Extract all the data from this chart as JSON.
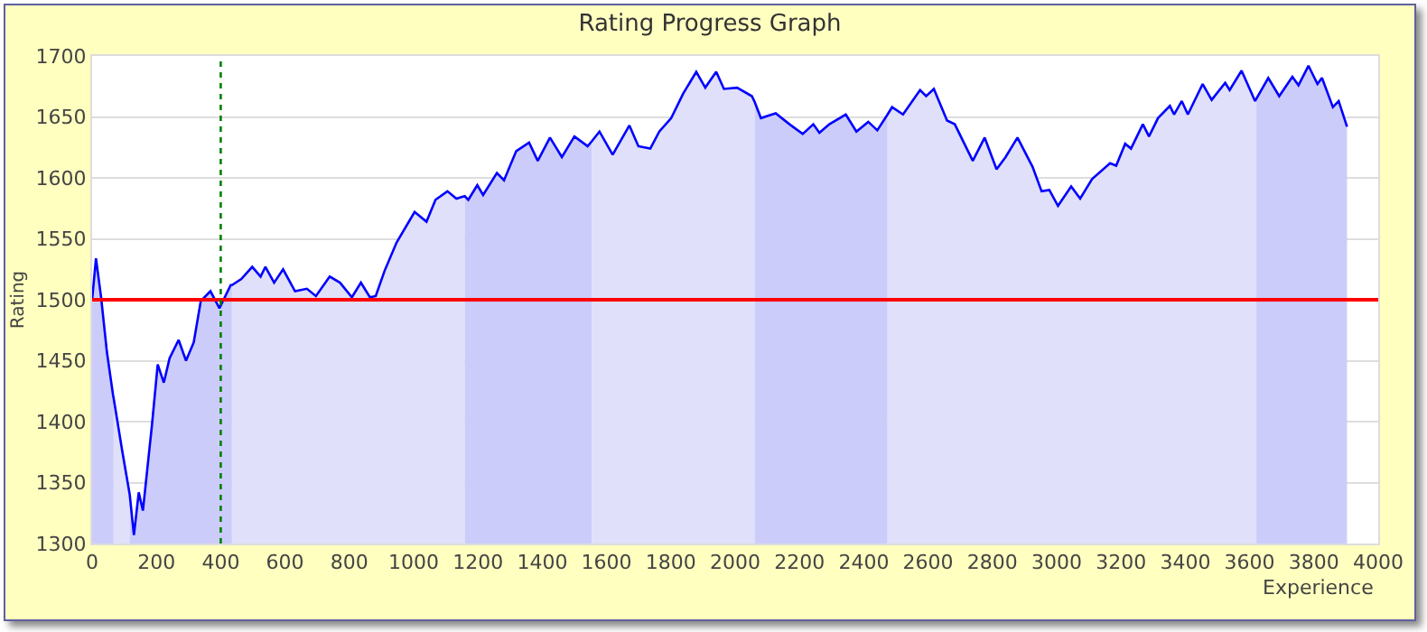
{
  "chart_data": {
    "type": "line",
    "title": "Rating Progress Graph",
    "xlabel": "Experience",
    "ylabel": "Rating",
    "xlim": [
      0,
      4000
    ],
    "xticks": [
      0,
      200,
      400,
      600,
      800,
      1000,
      1200,
      1400,
      1600,
      1800,
      2000,
      2200,
      2400,
      2600,
      2800,
      3000,
      3200,
      3400,
      3600,
      3800,
      4000
    ],
    "ylim": [
      1300,
      1700
    ],
    "yticks": [
      1300,
      1350,
      1400,
      1450,
      1500,
      1550,
      1600,
      1650,
      1700
    ],
    "grid": "y",
    "marker": "none",
    "line_style": "solid",
    "ref_lines": [
      {
        "axis": "y",
        "value": 1500,
        "color": "#ff0000",
        "line_style": "solid"
      },
      {
        "axis": "x",
        "value": 400,
        "color": "#008000",
        "line_style": "dotted"
      }
    ],
    "series": [
      {
        "type": "area",
        "color": "#ccccfa",
        "x": [
          0,
          12,
          28,
          46,
          65,
          67
        ],
        "values": [
          1500,
          1534,
          1502,
          1457,
          1422,
          1419
        ]
      },
      {
        "type": "area",
        "color": "#e0e0fa",
        "x": [
          67,
          93,
          117
        ],
        "values": [
          1419,
          1377,
          1340
        ]
      },
      {
        "type": "area",
        "color": "#ccccfa",
        "x": [
          117,
          130,
          145,
          158,
          186,
          204,
          223,
          241,
          269,
          292,
          316,
          338,
          368,
          396,
          431,
          435
        ],
        "values": [
          1340,
          1307,
          1342,
          1327,
          1397,
          1447,
          1432,
          1452,
          1467,
          1450,
          1465,
          1499,
          1507,
          1493,
          1512,
          1512
        ]
      },
      {
        "type": "area",
        "color": "#e0e0fa",
        "x": [
          435,
          464,
          498,
          524,
          539,
          566,
          594,
          631,
          668,
          696,
          739,
          771,
          808,
          836,
          864,
          882,
          910,
          947,
          1003,
          1040,
          1068,
          1105,
          1133,
          1159
        ],
        "values": [
          1512,
          1517,
          1527,
          1519,
          1527,
          1514,
          1525,
          1507,
          1509,
          1503,
          1519,
          1514,
          1502,
          1514,
          1502,
          1503,
          1524,
          1547,
          1572,
          1564,
          1582,
          1589,
          1583,
          1585
        ]
      },
      {
        "type": "area",
        "color": "#ccccfa",
        "x": [
          1159,
          1170,
          1198,
          1216,
          1259,
          1281,
          1319,
          1359,
          1386,
          1424,
          1461,
          1500,
          1541,
          1554
        ],
        "values": [
          1585,
          1582,
          1594,
          1586,
          1604,
          1598,
          1622,
          1629,
          1614,
          1633,
          1617,
          1634,
          1626,
          1630
        ]
      },
      {
        "type": "area",
        "color": "#e0e0fa",
        "x": [
          1554,
          1578,
          1619,
          1671,
          1699,
          1736,
          1764,
          1801,
          1838,
          1879,
          1907,
          1941,
          1965,
          2006,
          2052,
          2061
        ],
        "values": [
          1630,
          1638,
          1619,
          1643,
          1626,
          1624,
          1638,
          1649,
          1669,
          1687,
          1674,
          1687,
          1673,
          1674,
          1667,
          1662
        ]
      },
      {
        "type": "area",
        "color": "#ccccfa",
        "x": [
          2061,
          2080,
          2126,
          2169,
          2210,
          2243,
          2262,
          2293,
          2344,
          2377,
          2414,
          2442,
          2474
        ],
        "values": [
          1662,
          1649,
          1653,
          1644,
          1636,
          1644,
          1637,
          1644,
          1652,
          1638,
          1646,
          1639,
          1652
        ]
      },
      {
        "type": "area",
        "color": "#e0e0fa",
        "x": [
          2474,
          2488,
          2522,
          2575,
          2594,
          2618,
          2659,
          2683,
          2739,
          2776,
          2813,
          2841,
          2878,
          2925,
          2953,
          2977,
          3004,
          3045,
          3073,
          3110,
          3166,
          3185,
          3213,
          3231,
          3268,
          3287,
          3315,
          3352,
          3365,
          3389,
          3408,
          3454,
          3482,
          3524,
          3538,
          3575,
          3617,
          3621
        ],
        "values": [
          1652,
          1658,
          1652,
          1672,
          1667,
          1673,
          1647,
          1644,
          1614,
          1633,
          1607,
          1617,
          1633,
          1609,
          1589,
          1590,
          1577,
          1593,
          1583,
          1599,
          1612,
          1610,
          1628,
          1624,
          1644,
          1634,
          1649,
          1659,
          1652,
          1663,
          1652,
          1677,
          1664,
          1678,
          1672,
          1688,
          1663,
          1665
        ]
      },
      {
        "type": "area",
        "color": "#ccccfa",
        "x": [
          3621,
          3658,
          3692,
          3733,
          3752,
          3783,
          3811,
          3825,
          3859,
          3877,
          3903
        ],
        "values": [
          1665,
          1682,
          1667,
          1683,
          1676,
          1692,
          1677,
          1682,
          1658,
          1663,
          1642
        ]
      },
      {
        "color": "#0000ff",
        "x": [
          0,
          12,
          28,
          46,
          65,
          67,
          93,
          117,
          130,
          145,
          158,
          186,
          204,
          223,
          241,
          269,
          292,
          316,
          338,
          368,
          396,
          431,
          435,
          464,
          498,
          524,
          539,
          566,
          594,
          631,
          668,
          696,
          739,
          771,
          808,
          836,
          864,
          882,
          910,
          947,
          1003,
          1040,
          1068,
          1105,
          1133,
          1159,
          1170,
          1198,
          1216,
          1259,
          1281,
          1319,
          1359,
          1386,
          1424,
          1461,
          1500,
          1541,
          1554,
          1578,
          1619,
          1671,
          1699,
          1736,
          1764,
          1801,
          1838,
          1879,
          1907,
          1941,
          1965,
          2006,
          2052,
          2061,
          2080,
          2126,
          2169,
          2210,
          2243,
          2262,
          2293,
          2344,
          2377,
          2414,
          2442,
          2474,
          2488,
          2522,
          2575,
          2594,
          2618,
          2659,
          2683,
          2739,
          2776,
          2813,
          2841,
          2878,
          2925,
          2953,
          2977,
          3004,
          3045,
          3073,
          3110,
          3166,
          3185,
          3213,
          3231,
          3268,
          3287,
          3315,
          3352,
          3365,
          3389,
          3408,
          3454,
          3482,
          3524,
          3538,
          3575,
          3617,
          3621,
          3658,
          3692,
          3733,
          3752,
          3783,
          3811,
          3825,
          3859,
          3877,
          3903
        ],
        "values": [
          1500,
          1534,
          1502,
          1457,
          1422,
          1419,
          1377,
          1340,
          1307,
          1342,
          1327,
          1397,
          1447,
          1432,
          1452,
          1467,
          1450,
          1465,
          1499,
          1507,
          1493,
          1512,
          1512,
          1517,
          1527,
          1519,
          1527,
          1514,
          1525,
          1507,
          1509,
          1503,
          1519,
          1514,
          1502,
          1514,
          1502,
          1503,
          1524,
          1547,
          1572,
          1564,
          1582,
          1589,
          1583,
          1585,
          1582,
          1594,
          1586,
          1604,
          1598,
          1622,
          1629,
          1614,
          1633,
          1617,
          1634,
          1626,
          1630,
          1638,
          1619,
          1643,
          1626,
          1624,
          1638,
          1649,
          1669,
          1687,
          1674,
          1687,
          1673,
          1674,
          1667,
          1662,
          1649,
          1653,
          1644,
          1636,
          1644,
          1637,
          1644,
          1652,
          1638,
          1646,
          1639,
          1652,
          1658,
          1652,
          1672,
          1667,
          1673,
          1647,
          1644,
          1614,
          1633,
          1607,
          1617,
          1633,
          1609,
          1589,
          1590,
          1577,
          1593,
          1583,
          1599,
          1612,
          1610,
          1628,
          1624,
          1644,
          1634,
          1649,
          1659,
          1652,
          1663,
          1652,
          1677,
          1664,
          1678,
          1672,
          1688,
          1663,
          1665,
          1682,
          1667,
          1683,
          1676,
          1692,
          1677,
          1682,
          1658,
          1663,
          1642
        ]
      }
    ]
  }
}
